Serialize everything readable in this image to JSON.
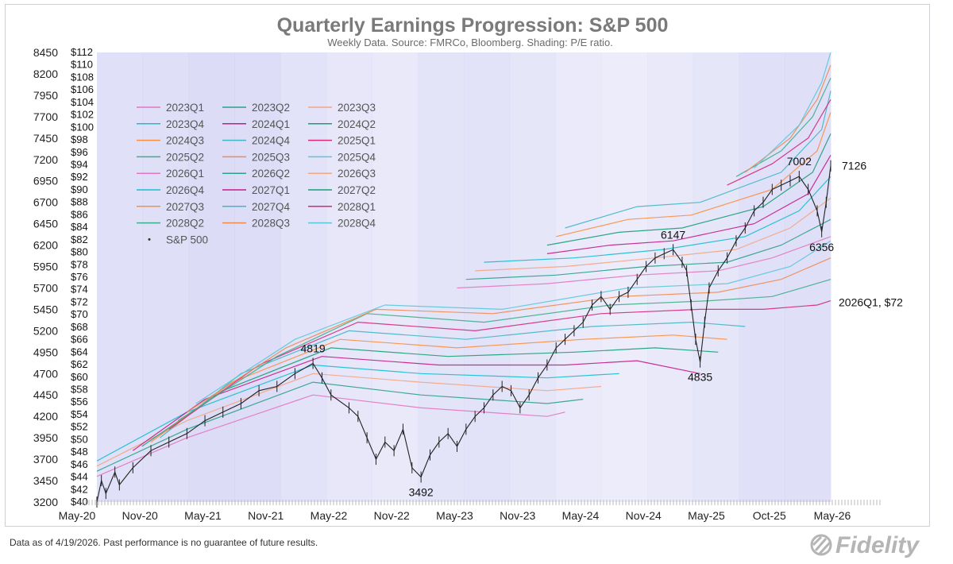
{
  "chart_data": {
    "type": "line",
    "title": "Quarterly Earnings Progression: S&P 500",
    "subtitle": "Weekly Data.  Source: FMRCo, Bloomberg.  Shading: P/E ratio.",
    "x_ticks": [
      "May-20",
      "Nov-20",
      "May-21",
      "Nov-21",
      "May-22",
      "Nov-22",
      "May-23",
      "Nov-23",
      "May-24",
      "Nov-24",
      "May-25",
      "Oct-25",
      "May-26"
    ],
    "left_axis": {
      "ylim": [
        3200,
        8450
      ],
      "ticks": [
        "8450",
        "8200",
        "7950",
        "7700",
        "7450",
        "7200",
        "6950",
        "6700",
        "6450",
        "6200",
        "5950",
        "5700",
        "5450",
        "5200",
        "4950",
        "4700",
        "4450",
        "4200",
        "3950",
        "3700",
        "3450",
        "3200"
      ]
    },
    "right_axis": {
      "ylim": [
        40,
        112
      ],
      "ticks": [
        "$112",
        "$110",
        "$108",
        "$106",
        "$104",
        "$102",
        "$100",
        "$98",
        "$96",
        "$94",
        "$92",
        "$90",
        "$88",
        "$86",
        "$84",
        "$82",
        "$80",
        "$78",
        "$76",
        "$74",
        "$72",
        "$70",
        "$68",
        "$66",
        "$64",
        "$62",
        "$60",
        "$58",
        "$56",
        "$54",
        "$52",
        "$50",
        "$48",
        "$46",
        "$44",
        "$42",
        "$40"
      ]
    },
    "legend_placement": "top-left",
    "legend": [
      "2023Q1",
      "2023Q2",
      "2023Q3",
      "2023Q4",
      "2024Q1",
      "2024Q2",
      "2024Q3",
      "2024Q4",
      "2025Q1",
      "2025Q2",
      "2025Q3",
      "2025Q4",
      "2026Q1",
      "2026Q2",
      "2026Q3",
      "2026Q4",
      "2027Q1",
      "2027Q2",
      "2027Q3",
      "2027Q4",
      "2028Q1",
      "2028Q2",
      "2028Q3",
      "2028Q4"
    ],
    "legend_price": "S&P 500",
    "colors": [
      "#e377c2",
      "#2ca08a",
      "#f4a582",
      "#17becf",
      "#c51b8a",
      "#1a9e77",
      "#fb8f3f",
      "#41b6c4",
      "#d6287c",
      "#3fae8a",
      "#f08b50",
      "#5ac8d8"
    ],
    "price_series": {
      "name": "S&P 500",
      "points": [
        [
          0,
          3200
        ],
        [
          1,
          3450
        ],
        [
          2,
          3300
        ],
        [
          4,
          3550
        ],
        [
          5,
          3400
        ],
        [
          8,
          3600
        ],
        [
          12,
          3800
        ],
        [
          16,
          3900
        ],
        [
          20,
          4000
        ],
        [
          24,
          4150
        ],
        [
          28,
          4250
        ],
        [
          32,
          4350
        ],
        [
          36,
          4500
        ],
        [
          40,
          4550
        ],
        [
          44,
          4700
        ],
        [
          48,
          4819
        ],
        [
          50,
          4650
        ],
        [
          52,
          4450
        ],
        [
          56,
          4300
        ],
        [
          58,
          4200
        ],
        [
          60,
          3950
        ],
        [
          62,
          3700
        ],
        [
          64,
          3900
        ],
        [
          66,
          3800
        ],
        [
          68,
          4050
        ],
        [
          70,
          3600
        ],
        [
          72,
          3492
        ],
        [
          74,
          3750
        ],
        [
          76,
          3900
        ],
        [
          78,
          4000
        ],
        [
          80,
          3850
        ],
        [
          82,
          4050
        ],
        [
          84,
          4200
        ],
        [
          86,
          4300
        ],
        [
          88,
          4450
        ],
        [
          90,
          4550
        ],
        [
          92,
          4500
        ],
        [
          94,
          4300
        ],
        [
          96,
          4450
        ],
        [
          98,
          4650
        ],
        [
          100,
          4800
        ],
        [
          102,
          5000
        ],
        [
          104,
          5100
        ],
        [
          106,
          5200
        ],
        [
          108,
          5300
        ],
        [
          110,
          5500
        ],
        [
          112,
          5600
        ],
        [
          114,
          5450
        ],
        [
          116,
          5600
        ],
        [
          118,
          5650
        ],
        [
          120,
          5800
        ],
        [
          122,
          5950
        ],
        [
          124,
          6050
        ],
        [
          126,
          6100
        ],
        [
          128,
          6147
        ],
        [
          130,
          6000
        ],
        [
          131,
          5900
        ],
        [
          132,
          5500
        ],
        [
          133,
          5100
        ],
        [
          134,
          4835
        ],
        [
          135,
          5300
        ],
        [
          136,
          5700
        ],
        [
          138,
          5900
        ],
        [
          140,
          6050
        ],
        [
          142,
          6250
        ],
        [
          144,
          6400
        ],
        [
          146,
          6600
        ],
        [
          148,
          6700
        ],
        [
          150,
          6850
        ],
        [
          152,
          6900
        ],
        [
          154,
          6950
        ],
        [
          156,
          7002
        ],
        [
          158,
          6850
        ],
        [
          160,
          6600
        ],
        [
          161,
          6356
        ],
        [
          162,
          6700
        ],
        [
          163,
          7126
        ]
      ]
    },
    "earnings_series": [
      {
        "name": "2023Q1",
        "color": "#e377c2",
        "points": [
          [
            0,
            3500
          ],
          [
            20,
            3950
          ],
          [
            48,
            4450
          ],
          [
            72,
            4300
          ],
          [
            100,
            4200
          ],
          [
            104,
            4250
          ]
        ]
      },
      {
        "name": "2023Q2",
        "color": "#2ca08a",
        "points": [
          [
            0,
            3560
          ],
          [
            20,
            4050
          ],
          [
            48,
            4600
          ],
          [
            72,
            4450
          ],
          [
            100,
            4350
          ],
          [
            108,
            4400
          ]
        ]
      },
      {
        "name": "2023Q3",
        "color": "#f4a582",
        "points": [
          [
            0,
            3620
          ],
          [
            20,
            4150
          ],
          [
            48,
            4700
          ],
          [
            72,
            4600
          ],
          [
            100,
            4500
          ],
          [
            112,
            4550
          ]
        ]
      },
      {
        "name": "2023Q4",
        "color": "#17becf",
        "points": [
          [
            0,
            3680
          ],
          [
            20,
            4250
          ],
          [
            48,
            4800
          ],
          [
            72,
            4700
          ],
          [
            100,
            4650
          ],
          [
            116,
            4700
          ]
        ]
      },
      {
        "name": "2024Q1",
        "color": "#c51b8a",
        "points": [
          [
            8,
            3800
          ],
          [
            24,
            4400
          ],
          [
            50,
            4900
          ],
          [
            76,
            4800
          ],
          [
            104,
            4800
          ],
          [
            120,
            4850
          ],
          [
            134,
            4700
          ]
        ]
      },
      {
        "name": "2024Q2",
        "color": "#1a9e77",
        "points": [
          [
            10,
            3850
          ],
          [
            28,
            4500
          ],
          [
            52,
            5000
          ],
          [
            78,
            4900
          ],
          [
            106,
            4950
          ],
          [
            124,
            5000
          ],
          [
            138,
            4950
          ]
        ]
      },
      {
        "name": "2024Q3",
        "color": "#fb8f3f",
        "points": [
          [
            12,
            3900
          ],
          [
            30,
            4600
          ],
          [
            54,
            5100
          ],
          [
            80,
            5000
          ],
          [
            108,
            5100
          ],
          [
            128,
            5150
          ],
          [
            140,
            5100
          ]
        ]
      },
      {
        "name": "2024Q4",
        "color": "#41b6c4",
        "points": [
          [
            14,
            3950
          ],
          [
            32,
            4700
          ],
          [
            56,
            5200
          ],
          [
            82,
            5100
          ],
          [
            110,
            5250
          ],
          [
            132,
            5300
          ],
          [
            144,
            5250
          ]
        ]
      },
      {
        "name": "2025Q1",
        "color": "#d6287c",
        "points": [
          [
            16,
            4050
          ],
          [
            36,
            4800
          ],
          [
            58,
            5300
          ],
          [
            84,
            5200
          ],
          [
            112,
            5400
          ],
          [
            134,
            5450
          ],
          [
            148,
            5450
          ],
          [
            160,
            5500
          ],
          [
            163,
            5550
          ]
        ]
      },
      {
        "name": "2025Q2",
        "color": "#3fae8a",
        "points": [
          [
            18,
            4150
          ],
          [
            40,
            4900
          ],
          [
            60,
            5400
          ],
          [
            86,
            5300
          ],
          [
            114,
            5500
          ],
          [
            136,
            5550
          ],
          [
            150,
            5600
          ],
          [
            163,
            5800
          ]
        ]
      },
      {
        "name": "2025Q3",
        "color": "#f08b50",
        "points": [
          [
            20,
            4250
          ],
          [
            42,
            5000
          ],
          [
            62,
            5450
          ],
          [
            88,
            5400
          ],
          [
            116,
            5600
          ],
          [
            138,
            5650
          ],
          [
            152,
            5800
          ],
          [
            163,
            6050
          ]
        ]
      },
      {
        "name": "2025Q4",
        "color": "#5ac8d8",
        "points": [
          [
            22,
            4350
          ],
          [
            44,
            5100
          ],
          [
            64,
            5500
          ],
          [
            90,
            5450
          ],
          [
            118,
            5700
          ],
          [
            140,
            5750
          ],
          [
            154,
            5950
          ],
          [
            163,
            6250
          ]
        ]
      },
      {
        "name": "2026Q1",
        "color": "#e377c2",
        "points": [
          [
            80,
            5700
          ],
          [
            100,
            5750
          ],
          [
            120,
            5850
          ],
          [
            138,
            5900
          ],
          [
            150,
            6050
          ],
          [
            163,
            6300
          ]
        ]
      },
      {
        "name": "2026Q2",
        "color": "#2ca08a",
        "points": [
          [
            82,
            5800
          ],
          [
            102,
            5850
          ],
          [
            122,
            5950
          ],
          [
            140,
            6000
          ],
          [
            152,
            6200
          ],
          [
            163,
            6500
          ]
        ]
      },
      {
        "name": "2026Q3",
        "color": "#f4a582",
        "points": [
          [
            84,
            5900
          ],
          [
            104,
            5950
          ],
          [
            124,
            6050
          ],
          [
            142,
            6150
          ],
          [
            154,
            6400
          ],
          [
            163,
            6750
          ]
        ]
      },
      {
        "name": "2026Q4",
        "color": "#17becf",
        "points": [
          [
            86,
            6000
          ],
          [
            106,
            6050
          ],
          [
            126,
            6150
          ],
          [
            144,
            6300
          ],
          [
            156,
            6600
          ],
          [
            163,
            7000
          ]
        ]
      },
      {
        "name": "2027Q1",
        "color": "#c51b8a",
        "points": [
          [
            100,
            6100
          ],
          [
            114,
            6200
          ],
          [
            128,
            6250
          ],
          [
            146,
            6450
          ],
          [
            158,
            6800
          ],
          [
            163,
            7250
          ]
        ]
      },
      {
        "name": "2027Q2",
        "color": "#1a9e77",
        "points": [
          [
            100,
            6200
          ],
          [
            116,
            6350
          ],
          [
            130,
            6400
          ],
          [
            148,
            6650
          ],
          [
            159,
            7050
          ],
          [
            163,
            7500
          ]
        ]
      },
      {
        "name": "2027Q3",
        "color": "#fb8f3f",
        "points": [
          [
            102,
            6300
          ],
          [
            118,
            6500
          ],
          [
            132,
            6550
          ],
          [
            150,
            6850
          ],
          [
            160,
            7300
          ],
          [
            163,
            7750
          ]
        ]
      },
      {
        "name": "2027Q4",
        "color": "#41b6c4",
        "points": [
          [
            104,
            6400
          ],
          [
            120,
            6650
          ],
          [
            134,
            6700
          ],
          [
            152,
            7050
          ],
          [
            161,
            7550
          ],
          [
            163,
            8000
          ]
        ]
      },
      {
        "name": "2028Q1",
        "color": "#d6287c",
        "points": [
          [
            140,
            6900
          ],
          [
            150,
            7150
          ],
          [
            158,
            7450
          ],
          [
            163,
            7900
          ]
        ]
      },
      {
        "name": "2028Q2",
        "color": "#3fae8a",
        "points": [
          [
            142,
            7000
          ],
          [
            152,
            7300
          ],
          [
            159,
            7700
          ],
          [
            163,
            8150
          ]
        ]
      },
      {
        "name": "2028Q3",
        "color": "#f08b50",
        "points": [
          [
            144,
            7050
          ],
          [
            154,
            7450
          ],
          [
            160,
            7900
          ],
          [
            163,
            8300
          ]
        ]
      },
      {
        "name": "2028Q4",
        "color": "#5ac8d8",
        "points": [
          [
            146,
            7100
          ],
          [
            156,
            7600
          ],
          [
            161,
            8100
          ],
          [
            163,
            8450
          ]
        ]
      }
    ],
    "annotations": [
      {
        "text": "4819",
        "x": 48,
        "y": 4819,
        "pos": "above"
      },
      {
        "text": "3492",
        "x": 72,
        "y": 3492,
        "pos": "below"
      },
      {
        "text": "6147",
        "x": 128,
        "y": 6147,
        "pos": "above"
      },
      {
        "text": "4835",
        "x": 134,
        "y": 4835,
        "pos": "below"
      },
      {
        "text": "7002",
        "x": 156,
        "y": 7002,
        "pos": "above"
      },
      {
        "text": "6356",
        "x": 161,
        "y": 6356,
        "pos": "below"
      },
      {
        "text": "7126",
        "x": 163,
        "y": 7126,
        "pos": "right"
      }
    ],
    "label_2026q1": {
      "text": "2026Q1, $72",
      "color": "#cc33cc",
      "y": 72
    },
    "shading": [
      0.55,
      0.6,
      0.7,
      0.65,
      0.5,
      0.35,
      0.3,
      0.45,
      0.5,
      0.4,
      0.25,
      0.2,
      0.3,
      0.4,
      0.55,
      0.6
    ]
  },
  "footnote": "Data as of 4/19/2026. Past performance is no guarantee of future results.",
  "logo_text": "Fidelity"
}
